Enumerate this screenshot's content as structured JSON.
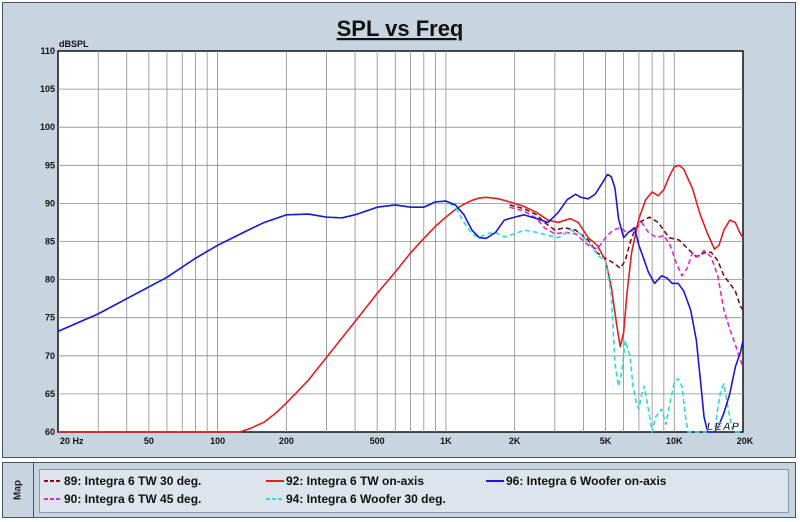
{
  "chart_data": {
    "type": "line",
    "title": "SPL vs Freq",
    "ylabel": "dBSPL",
    "xlabel": "",
    "x_scale": "log",
    "xlim": [
      20,
      20000
    ],
    "ylim": [
      60,
      110
    ],
    "x_ticks": [
      {
        "value": 20,
        "label": "20  Hz"
      },
      {
        "value": 50,
        "label": "50"
      },
      {
        "value": 100,
        "label": "100"
      },
      {
        "value": 200,
        "label": "200"
      },
      {
        "value": 500,
        "label": "500"
      },
      {
        "value": 1000,
        "label": "1K"
      },
      {
        "value": 2000,
        "label": "2K"
      },
      {
        "value": 5000,
        "label": "5K"
      },
      {
        "value": 10000,
        "label": "10K"
      },
      {
        "value": 20000,
        "label": "20K"
      }
    ],
    "y_ticks": [
      60,
      65,
      70,
      75,
      80,
      85,
      90,
      95,
      100,
      105,
      110
    ],
    "grid": true,
    "legend_position": "bottom",
    "watermark": "LEAP",
    "series": [
      {
        "name": "89: Integra 6 TW 30 deg.",
        "color": "#7a1414",
        "dash": "dashed",
        "points": [
          [
            1900,
            89.8
          ],
          [
            2200,
            89.3
          ],
          [
            2500,
            88.5
          ],
          [
            2700,
            87.5
          ],
          [
            3000,
            86.5
          ],
          [
            3300,
            86.8
          ],
          [
            3700,
            86.5
          ],
          [
            4200,
            85.2
          ],
          [
            4600,
            83.5
          ],
          [
            5000,
            82.8
          ],
          [
            5400,
            82.2
          ],
          [
            5800,
            81.5
          ],
          [
            6100,
            82.5
          ],
          [
            6500,
            85.5
          ],
          [
            7000,
            87.5
          ],
          [
            7800,
            88.2
          ],
          [
            8500,
            87.5
          ],
          [
            9500,
            85.5
          ],
          [
            10500,
            85.2
          ],
          [
            11500,
            84
          ],
          [
            12500,
            83
          ],
          [
            13500,
            83.5
          ],
          [
            14500,
            83.6
          ],
          [
            15500,
            82.5
          ],
          [
            16500,
            80.5
          ],
          [
            17500,
            79.5
          ],
          [
            18500,
            78.5
          ],
          [
            19500,
            76.5
          ],
          [
            20000,
            76
          ]
        ]
      },
      {
        "name": "90: Integra 6 TW 45 deg.",
        "color": "#e028d8",
        "dash": "dashed",
        "points": [
          [
            1900,
            89.5
          ],
          [
            2200,
            89
          ],
          [
            2500,
            88
          ],
          [
            2700,
            86.8
          ],
          [
            3000,
            86
          ],
          [
            3300,
            86.2
          ],
          [
            3700,
            86
          ],
          [
            4200,
            84.5
          ],
          [
            4600,
            84
          ],
          [
            5000,
            85.5
          ],
          [
            5400,
            86.5
          ],
          [
            5800,
            86.8
          ],
          [
            6200,
            86.2
          ],
          [
            6700,
            86.5
          ],
          [
            7200,
            87.5
          ],
          [
            7700,
            86.2
          ],
          [
            8400,
            85.5
          ],
          [
            9000,
            85.8
          ],
          [
            9600,
            84.5
          ],
          [
            10200,
            82.2
          ],
          [
            10800,
            80.5
          ],
          [
            11400,
            81.5
          ],
          [
            12000,
            83.5
          ],
          [
            12700,
            83
          ],
          [
            13500,
            83.8
          ],
          [
            14500,
            83
          ],
          [
            15500,
            80.5
          ],
          [
            16500,
            76
          ],
          [
            17500,
            73.5
          ],
          [
            18500,
            71.5
          ],
          [
            19200,
            70
          ],
          [
            20000,
            68.5
          ]
        ]
      },
      {
        "name": "92: Integra 6 TW on-axis",
        "color": "#dd2020",
        "dash": "solid",
        "points": [
          [
            20,
            60
          ],
          [
            50,
            60
          ],
          [
            100,
            60
          ],
          [
            125,
            60
          ],
          [
            140,
            60.5
          ],
          [
            160,
            61.3
          ],
          [
            180,
            62.5
          ],
          [
            200,
            63.8
          ],
          [
            250,
            66.8
          ],
          [
            300,
            69.8
          ],
          [
            400,
            74.5
          ],
          [
            500,
            78.2
          ],
          [
            600,
            81
          ],
          [
            700,
            83.5
          ],
          [
            800,
            85.4
          ],
          [
            900,
            87
          ],
          [
            1000,
            88.2
          ],
          [
            1100,
            89.2
          ],
          [
            1200,
            89.9
          ],
          [
            1300,
            90.4
          ],
          [
            1400,
            90.7
          ],
          [
            1500,
            90.8
          ],
          [
            1700,
            90.6
          ],
          [
            1900,
            90.2
          ],
          [
            2200,
            89.6
          ],
          [
            2500,
            88.8
          ],
          [
            2800,
            87.8
          ],
          [
            3100,
            87.5
          ],
          [
            3500,
            88
          ],
          [
            3800,
            87.5
          ],
          [
            4200,
            85.5
          ],
          [
            4600,
            84.5
          ],
          [
            5000,
            82.5
          ],
          [
            5300,
            79
          ],
          [
            5600,
            74
          ],
          [
            5800,
            71.2
          ],
          [
            6000,
            73
          ],
          [
            6200,
            78
          ],
          [
            6500,
            83.5
          ],
          [
            7000,
            88
          ],
          [
            7500,
            90.5
          ],
          [
            8000,
            91.5
          ],
          [
            8500,
            91
          ],
          [
            9000,
            91.8
          ],
          [
            9500,
            93.5
          ],
          [
            10000,
            94.8
          ],
          [
            10500,
            95
          ],
          [
            11000,
            94.5
          ],
          [
            12000,
            92
          ],
          [
            13000,
            88.5
          ],
          [
            14000,
            86
          ],
          [
            15000,
            84
          ],
          [
            15700,
            84.5
          ],
          [
            16500,
            86.5
          ],
          [
            17500,
            87.8
          ],
          [
            18500,
            87.5
          ],
          [
            19500,
            86
          ],
          [
            20000,
            85.5
          ]
        ]
      },
      {
        "name": "94: Integra 6 Woofer 30 deg.",
        "color": "#30d8e0",
        "dash": "dashed",
        "points": [
          [
            20,
            73.2
          ],
          [
            30,
            75.5
          ],
          [
            40,
            77.5
          ],
          [
            60,
            80.3
          ],
          [
            80,
            82.8
          ],
          [
            100,
            84.5
          ],
          [
            130,
            86.2
          ],
          [
            160,
            87.5
          ],
          [
            200,
            88.5
          ],
          [
            250,
            88.6
          ],
          [
            300,
            88.2
          ],
          [
            350,
            88.1
          ],
          [
            400,
            88.5
          ],
          [
            500,
            89.5
          ],
          [
            600,
            89.8
          ],
          [
            700,
            89.5
          ],
          [
            800,
            89.5
          ],
          [
            900,
            90.2
          ],
          [
            1000,
            90.3
          ],
          [
            1100,
            89.5
          ],
          [
            1200,
            87.5
          ],
          [
            1300,
            86
          ],
          [
            1400,
            85.5
          ],
          [
            1500,
            86
          ],
          [
            1650,
            86.2
          ],
          [
            1800,
            85.6
          ],
          [
            2000,
            86
          ],
          [
            2200,
            86.5
          ],
          [
            2500,
            86.2
          ],
          [
            2800,
            85.8
          ],
          [
            3100,
            85.5
          ],
          [
            3500,
            86.5
          ],
          [
            3900,
            86
          ],
          [
            4300,
            84.5
          ],
          [
            4700,
            83
          ],
          [
            5000,
            82.5
          ],
          [
            5300,
            78
          ],
          [
            5500,
            69
          ],
          [
            5700,
            66
          ],
          [
            5900,
            68
          ],
          [
            6100,
            72
          ],
          [
            6400,
            70
          ],
          [
            6600,
            66
          ],
          [
            6800,
            64
          ],
          [
            7000,
            63
          ],
          [
            7200,
            65
          ],
          [
            7400,
            66
          ],
          [
            7700,
            63
          ],
          [
            8000,
            60
          ],
          [
            8300,
            62
          ],
          [
            8800,
            63
          ],
          [
            9200,
            61
          ],
          [
            9600,
            64
          ],
          [
            10000,
            66.5
          ],
          [
            10400,
            67
          ],
          [
            10800,
            66
          ],
          [
            11200,
            62
          ],
          [
            11500,
            60
          ],
          [
            12000,
            60
          ],
          [
            13000,
            60
          ],
          [
            14000,
            60
          ],
          [
            15000,
            60
          ],
          [
            15500,
            63
          ],
          [
            16000,
            65.5
          ],
          [
            16500,
            66.3
          ],
          [
            17000,
            64
          ],
          [
            17500,
            62
          ],
          [
            18000,
            60
          ],
          [
            20000,
            60
          ]
        ]
      },
      {
        "name": "96: Integra 6 Woofer on-axis",
        "color": "#1a1ad0",
        "dash": "solid",
        "points": [
          [
            20,
            73.2
          ],
          [
            30,
            75.5
          ],
          [
            40,
            77.5
          ],
          [
            60,
            80.3
          ],
          [
            80,
            82.8
          ],
          [
            100,
            84.5
          ],
          [
            130,
            86.2
          ],
          [
            160,
            87.5
          ],
          [
            200,
            88.5
          ],
          [
            250,
            88.6
          ],
          [
            300,
            88.2
          ],
          [
            350,
            88.1
          ],
          [
            400,
            88.5
          ],
          [
            500,
            89.5
          ],
          [
            600,
            89.8
          ],
          [
            700,
            89.5
          ],
          [
            800,
            89.5
          ],
          [
            900,
            90.2
          ],
          [
            1000,
            90.3
          ],
          [
            1100,
            89.8
          ],
          [
            1200,
            88.5
          ],
          [
            1300,
            86.5
          ],
          [
            1400,
            85.5
          ],
          [
            1500,
            85.4
          ],
          [
            1650,
            86.2
          ],
          [
            1800,
            87.8
          ],
          [
            2000,
            88.2
          ],
          [
            2200,
            88.5
          ],
          [
            2500,
            88
          ],
          [
            2800,
            87.5
          ],
          [
            3100,
            88.8
          ],
          [
            3400,
            90.5
          ],
          [
            3700,
            91.2
          ],
          [
            3900,
            90.8
          ],
          [
            4200,
            90.6
          ],
          [
            4500,
            91.2
          ],
          [
            4800,
            92.5
          ],
          [
            5100,
            93.8
          ],
          [
            5300,
            93.5
          ],
          [
            5500,
            92
          ],
          [
            5700,
            88
          ],
          [
            6000,
            85.5
          ],
          [
            6300,
            86.2
          ],
          [
            6700,
            86.8
          ],
          [
            7000,
            84.5
          ],
          [
            7300,
            83
          ],
          [
            7700,
            81
          ],
          [
            8200,
            79.5
          ],
          [
            8800,
            80.5
          ],
          [
            9300,
            80.2
          ],
          [
            9800,
            79.5
          ],
          [
            10400,
            79.5
          ],
          [
            11000,
            78.5
          ],
          [
            11800,
            76
          ],
          [
            12500,
            72
          ],
          [
            13000,
            67
          ],
          [
            13500,
            62
          ],
          [
            14000,
            60
          ],
          [
            15000,
            60
          ],
          [
            15500,
            60.5
          ],
          [
            16500,
            62.5
          ],
          [
            17500,
            65
          ],
          [
            18500,
            68.5
          ],
          [
            19500,
            70.5
          ],
          [
            20000,
            72
          ]
        ]
      }
    ]
  },
  "legend": {
    "tab_label": "Map",
    "entries": [
      "89: Integra 6 TW 30 deg.",
      "90: Integra 6 TW 45 deg.",
      "92: Integra 6 TW on-axis",
      "94: Integra 6 Woofer 30 deg.",
      "96: Integra 6 Woofer on-axis"
    ]
  }
}
